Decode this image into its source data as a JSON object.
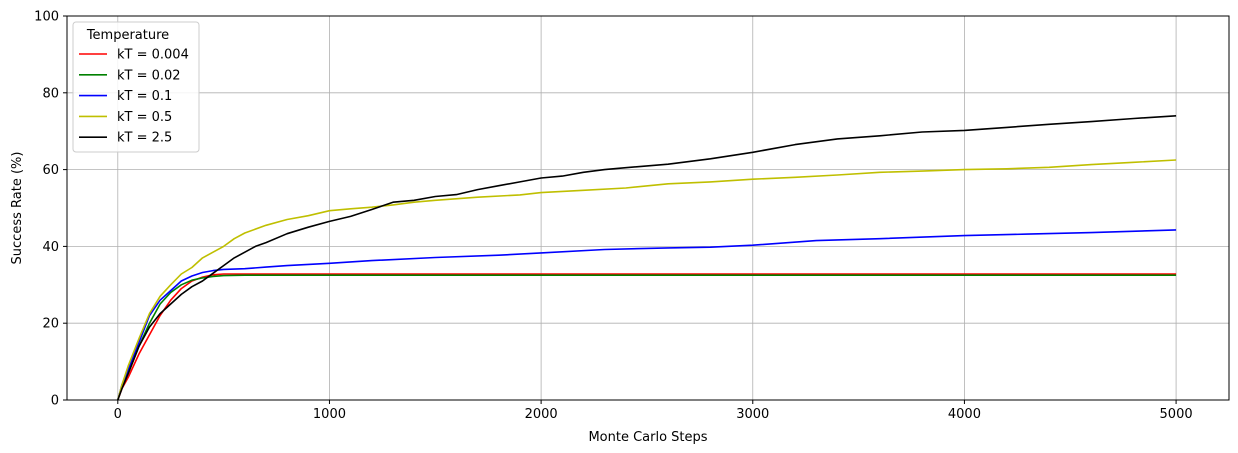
{
  "chart_data": {
    "type": "line",
    "title": "",
    "xlabel": "Monte Carlo Steps",
    "ylabel": "Success Rate (%)",
    "xlim": [
      -240,
      5250
    ],
    "ylim": [
      0,
      100
    ],
    "xticks": [
      0,
      1000,
      2000,
      3000,
      4000,
      5000
    ],
    "yticks": [
      0,
      20,
      40,
      60,
      80,
      100
    ],
    "grid": true,
    "legend": {
      "title": "Temperature",
      "placement": "upper-left"
    },
    "series": [
      {
        "name": "kT = 0.004",
        "color": "#ff0000",
        "x": [
          0,
          20,
          50,
          100,
          150,
          200,
          250,
          300,
          350,
          400,
          450,
          500,
          600,
          1000,
          2000,
          3000,
          4000,
          5000
        ],
        "y": [
          0,
          3,
          6,
          12,
          17,
          22,
          26,
          29,
          31,
          32,
          32.6,
          32.8,
          32.8,
          32.8,
          32.8,
          32.8,
          32.8,
          32.8
        ]
      },
      {
        "name": "kT = 0.02",
        "color": "#008000",
        "x": [
          0,
          20,
          50,
          100,
          150,
          200,
          250,
          300,
          350,
          400,
          450,
          500,
          600,
          1000,
          2000,
          3000,
          4000,
          5000
        ],
        "y": [
          0,
          3.5,
          7,
          14,
          20,
          25,
          28,
          30,
          31.2,
          31.8,
          32.2,
          32.4,
          32.5,
          32.5,
          32.5,
          32.5,
          32.5,
          32.5
        ]
      },
      {
        "name": "kT = 0.1",
        "color": "#0000ff",
        "x": [
          0,
          20,
          50,
          100,
          150,
          200,
          250,
          300,
          350,
          400,
          450,
          500,
          600,
          700,
          800,
          1000,
          1200,
          1500,
          1800,
          2000,
          2300,
          2600,
          2800,
          3000,
          3300,
          3600,
          4000,
          4300,
          4600,
          5000
        ],
        "y": [
          0,
          4,
          8,
          15,
          22,
          26,
          28.5,
          31,
          32.3,
          33.2,
          33.7,
          34,
          34.2,
          34.6,
          35,
          35.6,
          36.3,
          37.1,
          37.7,
          38.3,
          39.2,
          39.6,
          39.8,
          40.3,
          41.5,
          42,
          42.8,
          43.2,
          43.6,
          44.3
        ]
      },
      {
        "name": "kT = 0.5",
        "color": "#bfbf00",
        "x": [
          0,
          20,
          50,
          100,
          150,
          200,
          250,
          300,
          350,
          400,
          450,
          500,
          550,
          600,
          700,
          800,
          900,
          1000,
          1100,
          1200,
          1300,
          1400,
          1500,
          1700,
          1900,
          2000,
          2200,
          2400,
          2600,
          2800,
          3000,
          3200,
          3400,
          3600,
          3800,
          4000,
          4200,
          4400,
          4600,
          4800,
          5000
        ],
        "y": [
          0,
          4,
          9,
          16,
          22.5,
          27,
          30,
          32.8,
          34.5,
          37,
          38.5,
          40,
          42,
          43.5,
          45.5,
          47,
          48,
          49.3,
          49.8,
          50.2,
          50.8,
          51.5,
          52,
          52.8,
          53.4,
          54,
          54.6,
          55.2,
          56.3,
          56.8,
          57.5,
          58,
          58.6,
          59.3,
          59.6,
          60,
          60.2,
          60.6,
          61.3,
          61.9,
          62.5
        ]
      },
      {
        "name": "kT = 2.5",
        "color": "#000000",
        "x": [
          0,
          20,
          50,
          100,
          150,
          200,
          250,
          300,
          350,
          400,
          450,
          500,
          550,
          600,
          650,
          700,
          800,
          900,
          1000,
          1100,
          1200,
          1300,
          1400,
          1500,
          1600,
          1700,
          1800,
          1900,
          2000,
          2100,
          2200,
          2300,
          2400,
          2600,
          2800,
          3000,
          3200,
          3400,
          3600,
          3800,
          4000,
          4200,
          4400,
          4600,
          4800,
          5000
        ],
        "y": [
          0,
          3,
          7,
          14,
          19,
          22.5,
          25,
          27.5,
          29.5,
          31,
          33,
          35,
          37,
          38.5,
          40,
          41,
          43.3,
          45,
          46.5,
          47.8,
          49.6,
          51.5,
          52,
          53,
          53.5,
          54.8,
          55.8,
          56.8,
          57.8,
          58.3,
          59.3,
          60,
          60.5,
          61.4,
          62.8,
          64.5,
          66.5,
          68,
          68.8,
          69.8,
          70.2,
          71,
          71.8,
          72.5,
          73.3,
          74
        ]
      }
    ]
  }
}
